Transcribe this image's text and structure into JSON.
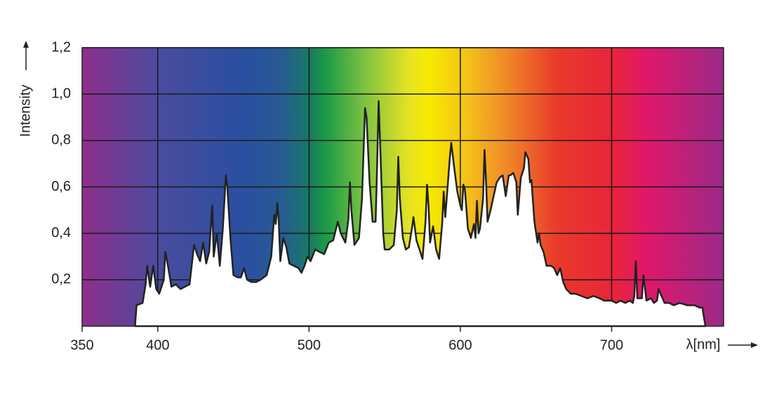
{
  "chart_data": {
    "type": "area",
    "x_label": "λ[nm]",
    "y_label": "Intensity",
    "xlim": [
      350,
      774
    ],
    "ylim": [
      0,
      1.2
    ],
    "xticks": [
      350,
      400,
      500,
      600,
      700
    ],
    "yticks": [
      {
        "value": 0.2,
        "label": "0,2"
      },
      {
        "value": 0.4,
        "label": "0,4"
      },
      {
        "value": 0.6,
        "label": "0,6"
      },
      {
        "value": 0.8,
        "label": "0,8"
      },
      {
        "value": 1.0,
        "label": "1,0"
      },
      {
        "value": 1.2,
        "label": "1,2"
      }
    ],
    "grid": true,
    "color": "#ffffff",
    "line_color": "#222222",
    "x": [
      385,
      386,
      390,
      392,
      393,
      395,
      397,
      399,
      401,
      404,
      405,
      407,
      409,
      412,
      415,
      418,
      421,
      424,
      426,
      428,
      430,
      432,
      434,
      436,
      437,
      439,
      441,
      443,
      445,
      446,
      448,
      450,
      453,
      455,
      457,
      459,
      462,
      465,
      468,
      472,
      475,
      477,
      478,
      479,
      480,
      481,
      483,
      485,
      487,
      490,
      493,
      495,
      497,
      499,
      501,
      504,
      507,
      510,
      513,
      516,
      519,
      521,
      524,
      526,
      527,
      528,
      530,
      533,
      535,
      537,
      538,
      540,
      542,
      544,
      545,
      546,
      547,
      549,
      550,
      553,
      556,
      558,
      559,
      560,
      562,
      564,
      566,
      568,
      569,
      571,
      573,
      575,
      577,
      578,
      579,
      580,
      582,
      584,
      586,
      588,
      589,
      590,
      591,
      593,
      594,
      596,
      598,
      600,
      601,
      602,
      603,
      605,
      607,
      609,
      610,
      611,
      612,
      613,
      615,
      616,
      617,
      618,
      620,
      622,
      624,
      626,
      628,
      630,
      632,
      633,
      635,
      637,
      638,
      640,
      642,
      643,
      645,
      646,
      647,
      649,
      651,
      652,
      653,
      655,
      657,
      660,
      662,
      664,
      666,
      668,
      670,
      673,
      676,
      680,
      684,
      688,
      692,
      695,
      700,
      703,
      706,
      709,
      712,
      714,
      715,
      716,
      717,
      719,
      720,
      721,
      723,
      726,
      728,
      730,
      731,
      733,
      735,
      738,
      741,
      745,
      750,
      755,
      758,
      760,
      762
    ],
    "values": [
      0,
      0.09,
      0.1,
      0.18,
      0.26,
      0.17,
      0.26,
      0.16,
      0.14,
      0.2,
      0.32,
      0.25,
      0.17,
      0.18,
      0.16,
      0.17,
      0.18,
      0.35,
      0.31,
      0.28,
      0.36,
      0.27,
      0.32,
      0.52,
      0.3,
      0.4,
      0.26,
      0.42,
      0.65,
      0.6,
      0.38,
      0.22,
      0.21,
      0.21,
      0.25,
      0.2,
      0.19,
      0.19,
      0.2,
      0.22,
      0.3,
      0.48,
      0.44,
      0.53,
      0.45,
      0.28,
      0.38,
      0.34,
      0.27,
      0.26,
      0.25,
      0.23,
      0.26,
      0.3,
      0.28,
      0.33,
      0.32,
      0.31,
      0.36,
      0.37,
      0.45,
      0.4,
      0.36,
      0.46,
      0.62,
      0.5,
      0.35,
      0.38,
      0.55,
      0.94,
      0.9,
      0.62,
      0.45,
      0.45,
      0.7,
      0.97,
      0.78,
      0.4,
      0.33,
      0.33,
      0.35,
      0.5,
      0.73,
      0.55,
      0.38,
      0.33,
      0.34,
      0.42,
      0.47,
      0.37,
      0.33,
      0.29,
      0.45,
      0.61,
      0.52,
      0.36,
      0.43,
      0.33,
      0.29,
      0.44,
      0.58,
      0.47,
      0.55,
      0.72,
      0.79,
      0.68,
      0.58,
      0.52,
      0.5,
      0.61,
      0.59,
      0.42,
      0.38,
      0.44,
      0.38,
      0.54,
      0.4,
      0.42,
      0.55,
      0.76,
      0.62,
      0.45,
      0.5,
      0.56,
      0.62,
      0.64,
      0.65,
      0.56,
      0.65,
      0.65,
      0.66,
      0.62,
      0.48,
      0.64,
      0.68,
      0.75,
      0.72,
      0.62,
      0.63,
      0.45,
      0.36,
      0.4,
      0.35,
      0.32,
      0.26,
      0.26,
      0.25,
      0.22,
      0.25,
      0.19,
      0.16,
      0.14,
      0.14,
      0.13,
      0.12,
      0.13,
      0.12,
      0.11,
      0.11,
      0.1,
      0.11,
      0.1,
      0.11,
      0.1,
      0.13,
      0.28,
      0.12,
      0.12,
      0.12,
      0.22,
      0.11,
      0.12,
      0.1,
      0.11,
      0.16,
      0.13,
      0.1,
      0.1,
      0.09,
      0.1,
      0.09,
      0.09,
      0.08,
      0.08,
      0
    ]
  }
}
